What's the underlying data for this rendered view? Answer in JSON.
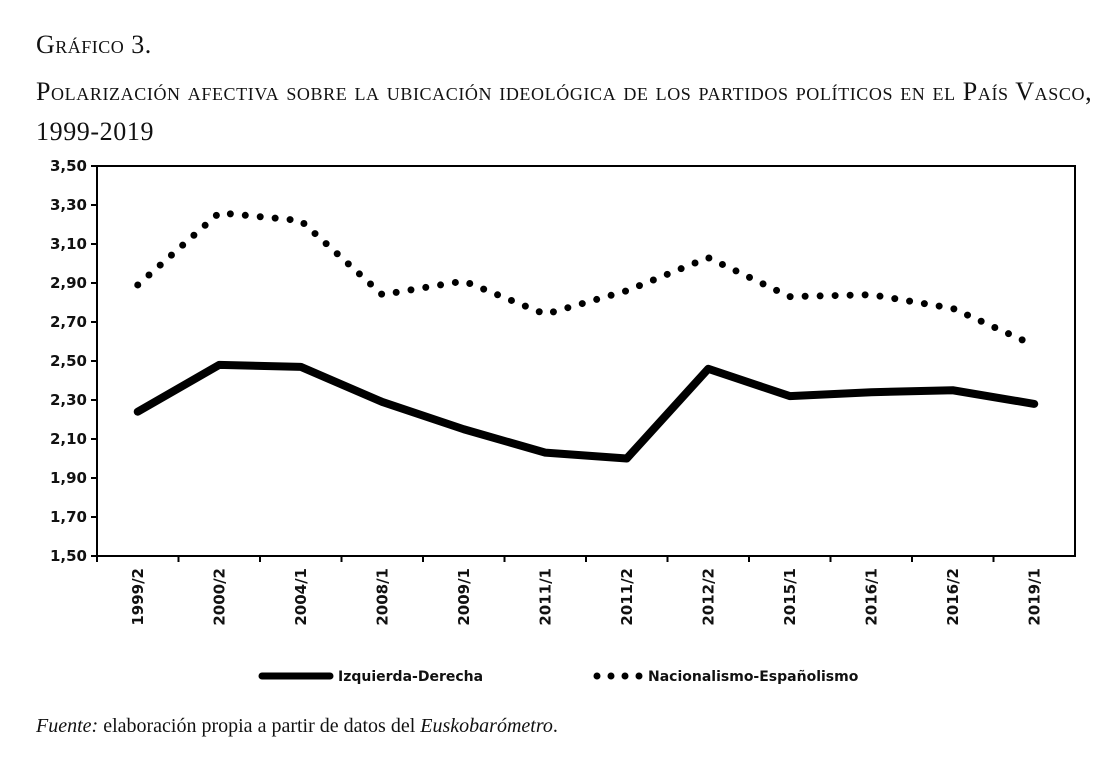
{
  "figure_label": "Gráfico 3.",
  "title": "Polarización afectiva sobre la ubicación ideológica de los partidos políticos en el País Vasco, 1999-2019",
  "source": {
    "label": "Fuente:",
    "text_before": " elaboración propia a partir de datos del ",
    "italic": "Euskobarómetro",
    "end": "."
  },
  "chart_data": {
    "type": "line",
    "title": "Polarización afectiva sobre la ubicación ideológica de los partidos políticos en el País Vasco, 1999-2019",
    "xlabel": "",
    "ylabel": "",
    "ylim": [
      1.5,
      3.5
    ],
    "yticks": [
      "1,50",
      "1,70",
      "1,90",
      "2,10",
      "2,30",
      "2,50",
      "2,70",
      "2,90",
      "3,10",
      "3,30",
      "3,50"
    ],
    "categories": [
      "1999/2",
      "2000/2",
      "2004/1",
      "2008/1",
      "2009/1",
      "2011/1",
      "2011/2",
      "2012/2",
      "2015/1",
      "2016/1",
      "2016/2",
      "2019/1"
    ],
    "grid": false,
    "legend_position": "bottom",
    "series": [
      {
        "name": "Izquierda-Derecha",
        "style": "solid",
        "color": "#000000",
        "values": [
          2.24,
          2.48,
          2.47,
          2.29,
          2.15,
          2.03,
          2.0,
          2.46,
          2.32,
          2.34,
          2.35,
          2.28
        ]
      },
      {
        "name": "Nacionalismo-Españolismo",
        "style": "dotted",
        "color": "#000000",
        "values": [
          2.89,
          3.26,
          3.22,
          2.84,
          2.91,
          2.74,
          2.86,
          3.03,
          2.83,
          2.84,
          2.77,
          2.58
        ]
      }
    ]
  }
}
